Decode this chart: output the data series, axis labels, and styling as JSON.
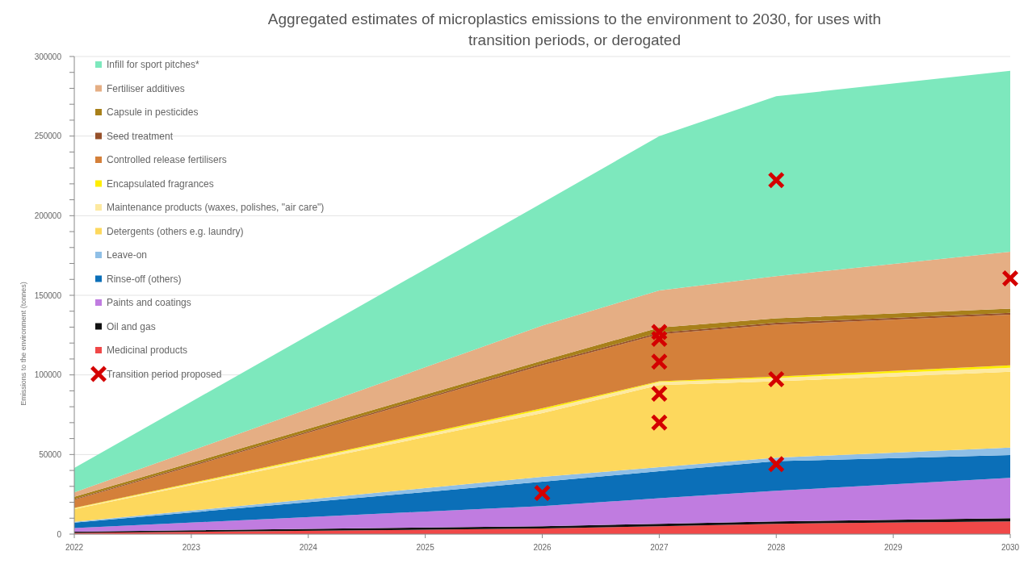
{
  "chart_data": {
    "type": "area",
    "title": "Aggregated estimates of microplastics emissions to the environment to 2030, for uses with transition periods, or derogated",
    "ylabel": "Emissions to the environment (tonnes)",
    "stacked": true,
    "x": [
      2022,
      2026,
      2027,
      2028,
      2030
    ],
    "xlim": [
      2022,
      2030
    ],
    "xticks": [
      2022,
      2023,
      2024,
      2025,
      2026,
      2027,
      2028,
      2029,
      2030
    ],
    "ylim": [
      0,
      300000
    ],
    "yticks": [
      0,
      {
        "value": 10000,
        "label": null
      },
      {
        "value": 20000,
        "label": null
      },
      {
        "value": 30000,
        "label": null
      },
      {
        "value": 40000,
        "label": null
      },
      50000,
      {
        "value": 60000,
        "label": null
      },
      {
        "value": 70000,
        "label": null
      },
      {
        "value": 80000,
        "label": null
      },
      {
        "value": 90000,
        "label": null
      },
      100000,
      {
        "value": 110000,
        "label": null
      },
      {
        "value": 120000,
        "label": null
      },
      {
        "value": 130000,
        "label": null
      },
      {
        "value": 140000,
        "label": null
      },
      150000,
      {
        "value": 160000,
        "label": null
      },
      {
        "value": 170000,
        "label": null
      },
      {
        "value": 180000,
        "label": null
      },
      {
        "value": 190000,
        "label": null
      },
      200000,
      {
        "value": 210000,
        "label": null
      },
      {
        "value": 220000,
        "label": null
      },
      {
        "value": 230000,
        "label": null
      },
      {
        "value": 240000,
        "label": null
      },
      250000,
      {
        "value": 260000,
        "label": null
      },
      {
        "value": 270000,
        "label": null
      },
      {
        "value": 280000,
        "label": null
      },
      {
        "value": 290000,
        "label": null
      },
      300000
    ],
    "grid": "y",
    "legend": "top left",
    "series": [
      {
        "name": "Medicinal products",
        "color": "#f04848",
        "values": [
          700,
          3500,
          5000,
          6500,
          8000
        ]
      },
      {
        "name": "Oil and gas",
        "color": "#111111",
        "values": [
          800,
          1500,
          1500,
          1500,
          2000
        ]
      },
      {
        "name": "Paints and coatings",
        "color": "#c07ce0",
        "values": [
          2300,
          12600,
          16000,
          19200,
          25300
        ]
      },
      {
        "name": "Rinse-off (others)",
        "color": "#0b6fb8",
        "values": [
          3400,
          15300,
          17000,
          18600,
          14300
        ]
      },
      {
        "name": "Leave-on",
        "color": "#8fbfe6",
        "values": [
          500,
          3100,
          2500,
          2200,
          4800
        ]
      },
      {
        "name": "Detergents (others e.g. laundry)",
        "color": "#fdd85d",
        "values": [
          8000,
          40000,
          51600,
          48000,
          47600
        ]
      },
      {
        "name": "Maintenance products (waxes, polishes, \"air care\")",
        "color": "#fde9a0",
        "values": [
          500,
          2000,
          1900,
          2000,
          2500
        ]
      },
      {
        "name": "Encapsulated fragrances",
        "color": "#ffee00",
        "values": [
          300,
          1000,
          500,
          1000,
          1500
        ]
      },
      {
        "name": "Controlled release fertilisers",
        "color": "#d4803a",
        "values": [
          5000,
          27000,
          29500,
          32600,
          31800
        ]
      },
      {
        "name": "Seed treatment",
        "color": "#96502a",
        "values": [
          500,
          1000,
          1000,
          1200,
          1200
        ]
      },
      {
        "name": "Capsule in pesticides",
        "color": "#a8801a",
        "values": [
          1400,
          2000,
          3200,
          2700,
          2700
        ]
      },
      {
        "name": "Fertiliser additives",
        "color": "#e5ae84",
        "values": [
          2800,
          22000,
          23300,
          26500,
          35700
        ]
      },
      {
        "name": "Infill for sport pitches*",
        "color": "#7de8bd",
        "values": [
          15300,
          77000,
          97000,
          113000,
          113600
        ]
      },
      {
        "name": "Transition period proposed",
        "type": "scatter",
        "marker": "cross",
        "color": "#d40000",
        "x": [
          2026,
          2027,
          2027,
          2027,
          2027,
          2027,
          2028,
          2028,
          2028,
          2030
        ],
        "values": [
          25800,
          126900,
          122600,
          108300,
          88200,
          70100,
          222300,
          97300,
          43900,
          160700
        ]
      }
    ]
  }
}
